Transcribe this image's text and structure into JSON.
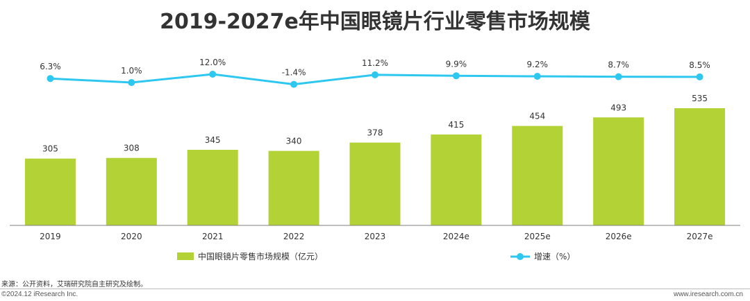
{
  "title": "2019-2027e年中国眼镜片行业零售市场规模",
  "chart_data": {
    "type": "bar",
    "categories": [
      "2019",
      "2020",
      "2021",
      "2022",
      "2023",
      "2024e",
      "2025e",
      "2026e",
      "2027e"
    ],
    "series": [
      {
        "name": "中国眼镜片零售市场规模（亿元）",
        "type": "bar",
        "color": "#b2d235",
        "values": [
          305,
          308,
          345,
          340,
          378,
          415,
          454,
          493,
          535
        ]
      },
      {
        "name": "增速（%）",
        "type": "line",
        "color": "#2ec7ef",
        "values": [
          6.3,
          1.0,
          12.0,
          -1.4,
          11.2,
          9.9,
          9.2,
          8.7,
          8.5
        ],
        "labels": [
          "6.3%",
          "1.0%",
          "12.0%",
          "-1.4%",
          "11.2%",
          "9.9%",
          "9.2%",
          "8.7%",
          "8.5%"
        ]
      }
    ],
    "legend_position": "bottom",
    "grid": false
  },
  "source": "来源：公开资料，艾瑞研究院自主研究及绘制。",
  "copyright": "©2024.12 iResearch Inc.",
  "website": "www.iresearch.com.cn"
}
